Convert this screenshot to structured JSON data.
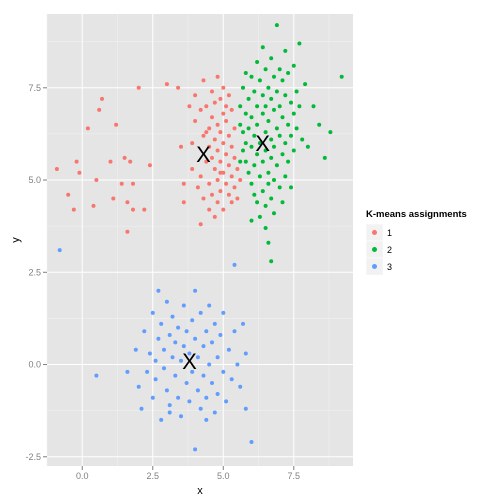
{
  "chart_data": {
    "type": "scatter",
    "title": "",
    "xlabel": "x",
    "ylabel": "y",
    "xlim": [
      -1.25,
      9.6
    ],
    "ylim": [
      -2.75,
      9.5
    ],
    "xticks": [
      "0.0",
      "2.5",
      "5.0",
      "7.5"
    ],
    "yticks": [
      "-2.5",
      "0.0",
      "2.5",
      "5.0",
      "7.5"
    ],
    "grid": true,
    "legend": {
      "title": "K-means assignments",
      "placement": "right",
      "entries": [
        "1",
        "2",
        "3"
      ]
    },
    "colors": {
      "1": "#F8766D",
      "2": "#00BA38",
      "3": "#619CFF"
    },
    "centroid_marker": "X",
    "centroids": [
      {
        "cluster": "1",
        "x": 4.3,
        "y": 5.7
      },
      {
        "cluster": "2",
        "x": 6.4,
        "y": 6.0
      },
      {
        "cluster": "3",
        "x": 3.8,
        "y": 0.1
      }
    ],
    "series": [
      {
        "name": "1",
        "points": [
          [
            -0.9,
            5.3
          ],
          [
            -0.5,
            4.6
          ],
          [
            -0.3,
            4.2
          ],
          [
            -0.2,
            5.5
          ],
          [
            -0.1,
            5.2
          ],
          [
            0.2,
            6.4
          ],
          [
            0.4,
            4.3
          ],
          [
            0.5,
            5.0
          ],
          [
            0.6,
            6.9
          ],
          [
            0.7,
            7.2
          ],
          [
            1.0,
            5.5
          ],
          [
            1.1,
            4.5
          ],
          [
            1.2,
            6.5
          ],
          [
            1.4,
            4.9
          ],
          [
            1.5,
            5.6
          ],
          [
            1.6,
            3.6
          ],
          [
            1.6,
            4.4
          ],
          [
            1.7,
            5.5
          ],
          [
            1.8,
            4.9
          ],
          [
            1.8,
            4.2
          ],
          [
            2.0,
            7.5
          ],
          [
            2.2,
            4.2
          ],
          [
            2.4,
            5.4
          ],
          [
            3.0,
            7.6
          ],
          [
            3.4,
            7.5
          ],
          [
            3.5,
            5.9
          ],
          [
            3.6,
            4.9
          ],
          [
            3.6,
            4.4
          ],
          [
            3.8,
            7.0
          ],
          [
            3.9,
            6.0
          ],
          [
            3.9,
            5.3
          ],
          [
            4.0,
            7.3
          ],
          [
            4.0,
            6.6
          ],
          [
            4.1,
            4.8
          ],
          [
            4.2,
            6.9
          ],
          [
            4.2,
            5.1
          ],
          [
            4.2,
            3.8
          ],
          [
            4.3,
            7.7
          ],
          [
            4.3,
            6.2
          ],
          [
            4.3,
            4.5
          ],
          [
            4.4,
            7.0
          ],
          [
            4.4,
            5.5
          ],
          [
            4.5,
            6.4
          ],
          [
            4.5,
            5.9
          ],
          [
            4.5,
            4.9
          ],
          [
            4.5,
            4.2
          ],
          [
            4.6,
            7.4
          ],
          [
            4.6,
            6.7
          ],
          [
            4.6,
            5.6
          ],
          [
            4.6,
            4.6
          ],
          [
            4.7,
            7.1
          ],
          [
            4.7,
            6.1
          ],
          [
            4.7,
            5.3
          ],
          [
            4.7,
            4.0
          ],
          [
            4.8,
            7.8
          ],
          [
            4.8,
            6.5
          ],
          [
            4.8,
            5.8
          ],
          [
            4.8,
            5.0
          ],
          [
            4.8,
            4.4
          ],
          [
            4.9,
            7.2
          ],
          [
            4.9,
            6.3
          ],
          [
            4.9,
            5.5
          ],
          [
            4.9,
            4.7
          ],
          [
            5.0,
            7.5
          ],
          [
            5.0,
            6.8
          ],
          [
            5.0,
            6.0
          ],
          [
            5.0,
            5.2
          ],
          [
            5.0,
            4.2
          ],
          [
            5.1,
            7.0
          ],
          [
            5.1,
            6.6
          ],
          [
            5.1,
            5.7
          ],
          [
            5.1,
            4.9
          ],
          [
            5.2,
            7.3
          ],
          [
            5.2,
            6.2
          ],
          [
            5.2,
            5.4
          ],
          [
            5.2,
            4.6
          ],
          [
            5.3,
            6.9
          ],
          [
            5.3,
            5.9
          ],
          [
            5.3,
            5.1
          ],
          [
            5.3,
            4.4
          ],
          [
            5.4,
            6.4
          ],
          [
            5.4,
            5.6
          ],
          [
            5.4,
            4.8
          ],
          [
            5.5,
            5.3
          ],
          [
            5.5,
            4.5
          ],
          [
            5.6,
            5.0
          ],
          [
            4.4,
            6.3
          ],
          [
            4.9,
            5.2
          ]
        ]
      },
      {
        "name": "2",
        "points": [
          [
            5.6,
            6.5
          ],
          [
            5.6,
            7.0
          ],
          [
            5.7,
            5.8
          ],
          [
            5.7,
            6.3
          ],
          [
            5.7,
            7.5
          ],
          [
            5.8,
            6.0
          ],
          [
            5.8,
            6.8
          ],
          [
            5.8,
            5.5
          ],
          [
            5.9,
            7.2
          ],
          [
            5.9,
            6.4
          ],
          [
            5.9,
            5.2
          ],
          [
            6.0,
            7.8
          ],
          [
            6.0,
            6.7
          ],
          [
            6.0,
            5.9
          ],
          [
            6.0,
            4.9
          ],
          [
            6.1,
            7.4
          ],
          [
            6.1,
            6.2
          ],
          [
            6.1,
            5.4
          ],
          [
            6.1,
            4.6
          ],
          [
            6.2,
            8.2
          ],
          [
            6.2,
            7.0
          ],
          [
            6.2,
            6.5
          ],
          [
            6.2,
            5.7
          ],
          [
            6.2,
            4.4
          ],
          [
            6.3,
            7.7
          ],
          [
            6.3,
            6.0
          ],
          [
            6.3,
            5.1
          ],
          [
            6.3,
            4.0
          ],
          [
            6.4,
            7.3
          ],
          [
            6.4,
            6.8
          ],
          [
            6.4,
            5.5
          ],
          [
            6.4,
            4.7
          ],
          [
            6.5,
            8.0
          ],
          [
            6.5,
            7.0
          ],
          [
            6.5,
            6.3
          ],
          [
            6.5,
            5.8
          ],
          [
            6.5,
            4.3
          ],
          [
            6.5,
            3.7
          ],
          [
            6.6,
            7.5
          ],
          [
            6.6,
            6.6
          ],
          [
            6.6,
            5.2
          ],
          [
            6.6,
            4.9
          ],
          [
            6.6,
            3.3
          ],
          [
            6.7,
            8.3
          ],
          [
            6.7,
            7.2
          ],
          [
            6.7,
            6.1
          ],
          [
            6.7,
            5.6
          ],
          [
            6.7,
            4.5
          ],
          [
            6.7,
            2.8
          ],
          [
            6.8,
            7.8
          ],
          [
            6.8,
            6.9
          ],
          [
            6.8,
            5.9
          ],
          [
            6.8,
            5.0
          ],
          [
            6.8,
            4.1
          ],
          [
            6.9,
            9.2
          ],
          [
            6.9,
            7.4
          ],
          [
            6.9,
            6.4
          ],
          [
            6.9,
            5.4
          ],
          [
            7.0,
            8.0
          ],
          [
            7.0,
            7.0
          ],
          [
            7.0,
            6.2
          ],
          [
            7.0,
            4.8
          ],
          [
            7.1,
            7.7
          ],
          [
            7.1,
            6.7
          ],
          [
            7.1,
            5.7
          ],
          [
            7.1,
            4.4
          ],
          [
            7.2,
            8.5
          ],
          [
            7.2,
            7.3
          ],
          [
            7.2,
            6.0
          ],
          [
            7.2,
            5.1
          ],
          [
            7.3,
            7.9
          ],
          [
            7.3,
            6.5
          ],
          [
            7.3,
            5.5
          ],
          [
            7.4,
            7.1
          ],
          [
            7.4,
            6.2
          ],
          [
            7.4,
            4.8
          ],
          [
            7.5,
            8.1
          ],
          [
            7.5,
            6.8
          ],
          [
            7.5,
            5.8
          ],
          [
            7.6,
            7.4
          ],
          [
            7.6,
            6.4
          ],
          [
            7.7,
            8.7
          ],
          [
            7.7,
            7.0
          ],
          [
            7.8,
            6.1
          ],
          [
            7.9,
            7.6
          ],
          [
            8.0,
            5.9
          ],
          [
            8.2,
            7.0
          ],
          [
            8.4,
            6.5
          ],
          [
            8.6,
            5.6
          ],
          [
            8.8,
            6.3
          ],
          [
            9.2,
            7.8
          ],
          [
            5.8,
            7.9
          ],
          [
            6.0,
            3.9
          ],
          [
            6.4,
            8.6
          ],
          [
            5.6,
            5.5
          ]
        ]
      },
      {
        "name": "3",
        "points": [
          [
            -0.8,
            3.1
          ],
          [
            0.5,
            -0.3
          ],
          [
            1.6,
            -0.2
          ],
          [
            1.9,
            0.4
          ],
          [
            2.0,
            -0.6
          ],
          [
            2.1,
            -1.2
          ],
          [
            2.2,
            0.9
          ],
          [
            2.3,
            -0.2
          ],
          [
            2.4,
            0.3
          ],
          [
            2.5,
            -0.9
          ],
          [
            2.5,
            1.4
          ],
          [
            2.6,
            0.1
          ],
          [
            2.6,
            -0.4
          ],
          [
            2.7,
            0.7
          ],
          [
            2.7,
            2.0
          ],
          [
            2.8,
            -1.5
          ],
          [
            2.8,
            1.1
          ],
          [
            2.9,
            -0.1
          ],
          [
            2.9,
            0.4
          ],
          [
            3.0,
            -0.7
          ],
          [
            3.0,
            1.7
          ],
          [
            3.1,
            0.8
          ],
          [
            3.1,
            -1.1
          ],
          [
            3.2,
            0.2
          ],
          [
            3.2,
            1.3
          ],
          [
            3.3,
            -0.3
          ],
          [
            3.3,
            0.6
          ],
          [
            3.4,
            -0.9
          ],
          [
            3.4,
            1.0
          ],
          [
            3.5,
            0.1
          ],
          [
            3.5,
            -1.4
          ],
          [
            3.6,
            0.5
          ],
          [
            3.6,
            1.6
          ],
          [
            3.7,
            -0.5
          ],
          [
            3.7,
            0.9
          ],
          [
            3.8,
            -1.0
          ],
          [
            3.8,
            0.3
          ],
          [
            3.9,
            1.2
          ],
          [
            3.9,
            -0.2
          ],
          [
            4.0,
            0.7
          ],
          [
            4.0,
            -2.3
          ],
          [
            4.0,
            2.0
          ],
          [
            4.1,
            -0.7
          ],
          [
            4.1,
            0.2
          ],
          [
            4.2,
            1.4
          ],
          [
            4.2,
            -1.2
          ],
          [
            4.3,
            0.5
          ],
          [
            4.3,
            -0.3
          ],
          [
            4.4,
            0.9
          ],
          [
            4.4,
            -0.9
          ],
          [
            4.5,
            1.6
          ],
          [
            4.5,
            0.0
          ],
          [
            4.6,
            -0.5
          ],
          [
            4.6,
            0.6
          ],
          [
            4.7,
            -1.3
          ],
          [
            4.7,
            1.1
          ],
          [
            4.8,
            0.2
          ],
          [
            4.8,
            -0.8
          ],
          [
            4.9,
            0.8
          ],
          [
            5.0,
            -0.2
          ],
          [
            5.0,
            1.4
          ],
          [
            5.1,
            -1.0
          ],
          [
            5.2,
            0.4
          ],
          [
            5.3,
            -0.4
          ],
          [
            5.4,
            0.9
          ],
          [
            5.5,
            0.0
          ],
          [
            5.6,
            -0.6
          ],
          [
            5.7,
            1.1
          ],
          [
            5.8,
            0.3
          ],
          [
            5.8,
            -1.2
          ],
          [
            6.0,
            -2.1
          ],
          [
            5.4,
            2.7
          ],
          [
            3.1,
            -1.3
          ],
          [
            4.4,
            -1.5
          ]
        ]
      }
    ]
  }
}
